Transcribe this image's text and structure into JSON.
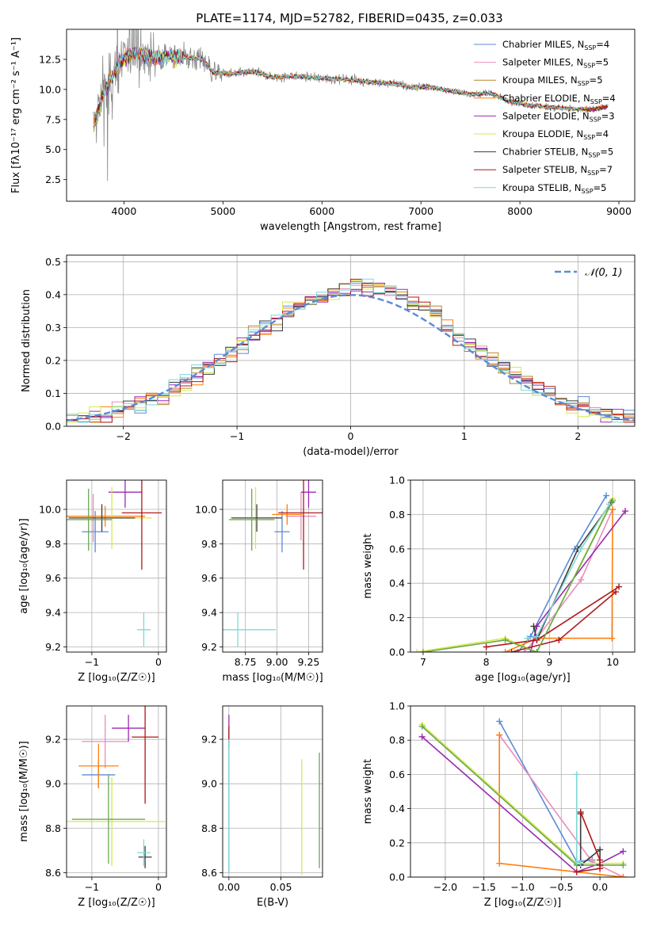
{
  "figure": {
    "title": "PLATE=1174, MJD=52782, FIBERID=0435, z=0.033"
  },
  "chart_data": [
    {
      "id": "spectrum",
      "type": "line",
      "xlabel": "wavelength [Angstrom, rest frame]",
      "ylabel": "Flux [f$_\\lambda$10$^{-17}$ erg cm$^{-2}$ s$^{-1}$ A$^{-1}$]",
      "ylabel_display": "Flux [fλ10⁻¹⁷ erg cm⁻² s⁻¹ A⁻¹]",
      "xlim": [
        3420,
        9160
      ],
      "ylim": [
        0.7,
        15.0
      ],
      "xticks": [
        4000,
        5000,
        6000,
        7000,
        8000,
        9000
      ],
      "yticks": [
        2.5,
        5.0,
        7.5,
        10.0,
        12.5
      ],
      "ytick_labels": [
        "2.5",
        "5.0",
        "7.5",
        "10.0",
        "12.5"
      ],
      "grid": false,
      "legend_position": "upper-right",
      "data_color": "#888888",
      "anchors": {
        "x": [
          3690,
          3800,
          3950,
          4100,
          4300,
          4500,
          4800,
          4900,
          5100,
          5300,
          5500,
          5700,
          5900,
          6100,
          6300,
          6500,
          6700,
          6900,
          7100,
          7300,
          7500,
          7700,
          7900,
          8100,
          8300,
          8500,
          8700,
          8890
        ],
        "y": [
          6.8,
          9.8,
          12.2,
          13.1,
          12.6,
          12.8,
          12.5,
          11.4,
          11.3,
          11.5,
          11.0,
          11.1,
          11.0,
          10.9,
          10.8,
          10.6,
          10.5,
          10.2,
          10.2,
          9.9,
          9.6,
          9.7,
          9.0,
          8.7,
          8.5,
          8.4,
          8.3,
          8.6
        ]
      },
      "series": [
        {
          "name": "Chabrier MILES",
          "nssp": "4",
          "color": "#5b8ad6"
        },
        {
          "name": "Salpeter MILES",
          "nssp": "5",
          "color": "#e98dbb"
        },
        {
          "name": "Kroupa MILES",
          "nssp": "5",
          "color": "#b8862b"
        },
        {
          "name": "Chabrier ELODIE",
          "nssp": "4",
          "color": "#ff7f0e"
        },
        {
          "name": "Salpeter ELODIE",
          "nssp": "3",
          "color": "#9a2bb0"
        },
        {
          "name": "Kroupa ELODIE",
          "nssp": "4",
          "color": "#d8e84a"
        },
        {
          "name": "Chabrier STELIB",
          "nssp": "5",
          "color": "#3c3c3c"
        },
        {
          "name": "Salpeter STELIB",
          "nssp": "7",
          "color": "#b01818"
        },
        {
          "name": "Kroupa STELIB",
          "nssp": "5",
          "color": "#7fd8d8"
        }
      ]
    },
    {
      "id": "residuals",
      "type": "histogram",
      "xlabel": "(data-model)/error",
      "ylabel": "Normed distribution",
      "xlim": [
        -2.5,
        2.5
      ],
      "ylim": [
        0,
        0.52
      ],
      "xticks": [
        -2,
        -1,
        0,
        1,
        2
      ],
      "xtick_labels": [
        "−2",
        "−1",
        "0",
        "1",
        "2"
      ],
      "yticks": [
        0.0,
        0.1,
        0.2,
        0.3,
        0.4,
        0.5
      ],
      "ytick_labels": [
        "0.0",
        "0.1",
        "0.2",
        "0.3",
        "0.4",
        "0.5"
      ],
      "grid": true,
      "bin_width": 0.1,
      "legend": "𝒩(0, 1)",
      "legend_position": "top-right",
      "reference_curve": {
        "name": "N(0,1)",
        "mean": 0,
        "sigma": 1,
        "color": "#5b8ad6",
        "style": "dashed"
      },
      "series_colors": [
        "#5b8ad6",
        "#e98dbb",
        "#b8862b",
        "#ff7f0e",
        "#9a2bb0",
        "#d8e84a",
        "#3c3c3c",
        "#b01818",
        "#7fd8d8"
      ]
    },
    {
      "id": "age-vs-z",
      "type": "errorbar",
      "xlabel": "Z [log₁₀(Z/Z☉)]",
      "ylabel": "age  [log₁₀(age/yr)]",
      "xlim": [
        -1.38,
        0.12
      ],
      "ylim": [
        9.17,
        10.17
      ],
      "xticks": [
        -1,
        0
      ],
      "xtick_labels": [
        "−1",
        "0"
      ],
      "yticks": [
        9.2,
        9.4,
        9.6,
        9.8,
        10.0
      ],
      "ytick_labels": [
        "9.2",
        "9.4",
        "9.6",
        "9.8",
        "10.0"
      ],
      "grid": true,
      "points": [
        {
          "series": "Chabrier MILES",
          "x": -0.95,
          "y": 9.87,
          "xerr": 0.2,
          "yerr": 0.12,
          "color": "#5b8ad6"
        },
        {
          "series": "Salpeter MILES",
          "x": -0.98,
          "y": 9.95,
          "xerr": 0.3,
          "yerr": 0.14,
          "color": "#e98dbb"
        },
        {
          "series": "Chabrier ELODIE",
          "x": -0.8,
          "y": 9.96,
          "xerr": 0.6,
          "yerr": 0.06,
          "color": "#ff7f0e"
        },
        {
          "series": "Salpeter ELODIE",
          "x": -0.5,
          "y": 10.1,
          "xerr": 0.25,
          "yerr": 0.09,
          "color": "#9a2bb0"
        },
        {
          "series": "Kroupa ELODIE",
          "x": -0.7,
          "y": 9.95,
          "xerr": 0.6,
          "yerr": 0.18,
          "color": "#d8e84a"
        },
        {
          "series": "Chabrier STELIB",
          "x": -0.85,
          "y": 9.95,
          "xerr": 0.5,
          "yerr": 0.08,
          "color": "#3c3c3c"
        },
        {
          "series": "Salpeter STELIB",
          "x": -0.25,
          "y": 9.98,
          "xerr": 0.3,
          "yerr": 0.33,
          "color": "#b01818"
        },
        {
          "series": "Kroupa STELIB",
          "x": -0.22,
          "y": 9.3,
          "xerr": 0.1,
          "yerr": 0.1,
          "color": "#7fd8d8"
        },
        {
          "series": "Kroupa MILES",
          "x": -1.05,
          "y": 9.94,
          "xerr": 0.35,
          "yerr": 0.18,
          "color": "#6aa84f"
        }
      ]
    },
    {
      "id": "age-vs-mass",
      "type": "errorbar",
      "xlabel": "mass [log₁₀(M/M☉)]",
      "ylabel": "",
      "xlim": [
        8.57,
        9.36
      ],
      "ylim": [
        9.17,
        10.17
      ],
      "xticks": [
        8.75,
        9.0,
        9.25
      ],
      "xtick_labels": [
        "8.75",
        "9.00",
        "9.25"
      ],
      "yticks": [
        9.2,
        9.4,
        9.6,
        9.8,
        10.0
      ],
      "ytick_labels": [
        "9.2",
        "9.4",
        "9.6",
        "9.8",
        "10.0"
      ],
      "grid": true,
      "points": [
        {
          "series": "Chabrier MILES",
          "x": 9.04,
          "y": 9.87,
          "xerr": 0.06,
          "yerr": 0.12,
          "color": "#5b8ad6"
        },
        {
          "series": "Salpeter MILES",
          "x": 9.19,
          "y": 9.96,
          "xerr": 0.12,
          "yerr": 0.14,
          "color": "#e98dbb"
        },
        {
          "series": "Chabrier ELODIE",
          "x": 9.08,
          "y": 9.97,
          "xerr": 0.12,
          "yerr": 0.06,
          "color": "#ff7f0e"
        },
        {
          "series": "Salpeter ELODIE",
          "x": 9.25,
          "y": 10.1,
          "xerr": 0.06,
          "yerr": 0.09,
          "color": "#9a2bb0"
        },
        {
          "series": "Kroupa ELODIE",
          "x": 8.83,
          "y": 9.95,
          "xerr": 0.2,
          "yerr": 0.18,
          "color": "#d8e84a"
        },
        {
          "series": "Chabrier STELIB",
          "x": 8.84,
          "y": 9.95,
          "xerr": 0.2,
          "yerr": 0.08,
          "color": "#3c3c3c"
        },
        {
          "series": "Salpeter STELIB",
          "x": 9.21,
          "y": 9.98,
          "xerr": 0.2,
          "yerr": 0.33,
          "color": "#b01818"
        },
        {
          "series": "Kroupa STELIB",
          "x": 8.69,
          "y": 9.3,
          "xerr": 0.3,
          "yerr": 0.1,
          "color": "#7fd8d8"
        },
        {
          "series": "Kroupa MILES",
          "x": 8.8,
          "y": 9.94,
          "xerr": 0.18,
          "yerr": 0.18,
          "color": "#6aa84f"
        }
      ]
    },
    {
      "id": "mass-weight-vs-age",
      "type": "line",
      "xlabel": "age  [log₁₀(age/yr)]",
      "ylabel": "mass weight",
      "xlim": [
        6.8,
        10.35
      ],
      "ylim": [
        0,
        1.0
      ],
      "xticks": [
        7,
        8,
        9,
        10
      ],
      "xtick_labels": [
        "7",
        "8",
        "9",
        "10"
      ],
      "yticks": [
        0.0,
        0.2,
        0.4,
        0.6,
        0.8,
        1.0
      ],
      "ytick_labels": [
        "0.0",
        "0.2",
        "0.4",
        "0.6",
        "0.8",
        "1.0"
      ],
      "grid": true,
      "series": [
        {
          "name": "Chabrier MILES",
          "color": "#5b8ad6",
          "x": [
            8.5,
            8.7,
            9.4,
            9.9
          ],
          "y": [
            0.0,
            0.09,
            0.6,
            0.91
          ]
        },
        {
          "name": "Salpeter MILES",
          "color": "#e98dbb",
          "x": [
            8.6,
            8.8,
            9.5,
            10.0
          ],
          "y": [
            0.0,
            0.08,
            0.42,
            0.83
          ]
        },
        {
          "name": "Chabrier ELODIE",
          "color": "#ff7f0e",
          "x": [
            8.3,
            8.8,
            9.99,
            10.0
          ],
          "y": [
            0.0,
            0.08,
            0.08,
            0.83
          ]
        },
        {
          "name": "Salpeter ELODIE",
          "color": "#9a2bb0",
          "x": [
            8.7,
            8.8,
            10.2
          ],
          "y": [
            0.0,
            0.15,
            0.82
          ]
        },
        {
          "name": "Kroupa ELODIE",
          "color": "#d8e84a",
          "x": [
            6.9,
            8.3,
            8.8,
            10.0
          ],
          "y": [
            0.0,
            0.08,
            0.0,
            0.89
          ]
        },
        {
          "name": "Chabrier STELIB",
          "color": "#3c3c3c",
          "x": [
            8.75,
            8.8,
            9.45,
            9.98
          ],
          "y": [
            0.15,
            0.07,
            0.6,
            0.87
          ]
        },
        {
          "name": "Salpeter STELIB",
          "color": "#b01818",
          "x": [
            8.0,
            8.8,
            10.1
          ],
          "y": [
            0.03,
            0.07,
            0.38
          ]
        },
        {
          "name": "Salpeter STELIB (2)",
          "color": "#b01818",
          "x": [
            8.4,
            9.15,
            10.05
          ],
          "y": [
            0.0,
            0.07,
            0.35
          ]
        },
        {
          "name": "Kroupa STELIB",
          "color": "#7fd8d8",
          "x": [
            8.65,
            8.8,
            9.5,
            9.95
          ],
          "y": [
            0.08,
            0.09,
            0.6,
            0.86
          ]
        },
        {
          "name": "Kroupa MILES",
          "color": "#6aa84f",
          "x": [
            7.0,
            8.3,
            8.8,
            10.0
          ],
          "y": [
            0.0,
            0.07,
            0.0,
            0.88
          ]
        }
      ]
    },
    {
      "id": "mass-vs-z",
      "type": "errorbar",
      "xlabel": "Z [log₁₀(Z/Z☉)]",
      "ylabel": "mass [log₁₀(M/M☉)]",
      "xlim": [
        -1.38,
        0.12
      ],
      "ylim": [
        8.58,
        9.35
      ],
      "xticks": [
        -1,
        0
      ],
      "xtick_labels": [
        "−1",
        "0"
      ],
      "yticks": [
        8.6,
        8.8,
        9.0,
        9.2
      ],
      "ytick_labels": [
        "8.6",
        "8.8",
        "9.0",
        "9.2"
      ],
      "grid": true,
      "points": [
        {
          "series": "Chabrier MILES",
          "x": -0.9,
          "y": 9.04,
          "xerr": 0.25,
          "yerr": 0.06,
          "color": "#5b8ad6"
        },
        {
          "series": "Salpeter MILES",
          "x": -0.8,
          "y": 9.19,
          "xerr": 0.35,
          "yerr": 0.12,
          "color": "#e98dbb"
        },
        {
          "series": "Chabrier ELODIE",
          "x": -0.9,
          "y": 9.08,
          "xerr": 0.3,
          "yerr": 0.1,
          "color": "#ff7f0e"
        },
        {
          "series": "Salpeter ELODIE",
          "x": -0.45,
          "y": 9.25,
          "xerr": 0.25,
          "yerr": 0.06,
          "color": "#9a2bb0"
        },
        {
          "series": "Kroupa ELODIE",
          "x": -0.7,
          "y": 8.83,
          "xerr": 0.8,
          "yerr": 0.2,
          "color": "#d8e84a"
        },
        {
          "series": "Kroupa MILES",
          "x": -0.75,
          "y": 8.84,
          "xerr": 0.55,
          "yerr": 0.2,
          "color": "#6aa84f"
        },
        {
          "series": "Chabrier STELIB",
          "x": -0.2,
          "y": 8.67,
          "xerr": 0.1,
          "yerr": 0.05,
          "color": "#3c3c3c"
        },
        {
          "series": "Salpeter STELIB",
          "x": -0.2,
          "y": 9.21,
          "xerr": 0.2,
          "yerr": 0.3,
          "color": "#b01818"
        },
        {
          "series": "Kroupa STELIB",
          "x": -0.22,
          "y": 8.69,
          "xerr": 0.1,
          "yerr": 0.06,
          "color": "#7fd8d8"
        }
      ]
    },
    {
      "id": "mass-vs-ebv",
      "type": "errorbar",
      "xlabel": "E(B-V)",
      "ylabel": "",
      "xlim": [
        -0.006,
        0.09
      ],
      "ylim": [
        8.58,
        9.35
      ],
      "xticks": [
        0.0,
        0.05
      ],
      "xtick_labels": [
        "0.00",
        "0.05"
      ],
      "yticks": [
        8.6,
        8.8,
        9.0,
        9.2
      ],
      "ytick_labels": [
        "8.6",
        "8.8",
        "9.0",
        "9.2"
      ],
      "grid": true,
      "points": [
        {
          "series": "Salpeter ELODIE",
          "x": 0.0,
          "y": 9.25,
          "xerr": 0.0,
          "yerr": 0.06,
          "color": "#9a2bb0"
        },
        {
          "series": "Salpeter STELIB",
          "x": 0.0,
          "y": 9.21,
          "xerr": 0.0,
          "yerr": 0.05,
          "color": "#b01818"
        },
        {
          "series": "Chabrier MILES",
          "x": 0.0,
          "y": 8.9,
          "xerr": 0.0,
          "yerr": 0.3,
          "color": "#5b8ad6"
        },
        {
          "series": "Kroupa STELIB",
          "x": 0.0,
          "y": 8.9,
          "xerr": 0.0,
          "yerr": 0.3,
          "color": "#7fd8d8"
        },
        {
          "series": "Kroupa ELODIE",
          "x": 0.07,
          "y": 8.85,
          "xerr": 0.0,
          "yerr": 0.26,
          "color": "#d8e84a"
        },
        {
          "series": "Kroupa MILES",
          "x": 0.087,
          "y": 8.88,
          "xerr": 0.0,
          "yerr": 0.26,
          "color": "#6aa84f"
        }
      ]
    },
    {
      "id": "mass-weight-vs-z",
      "type": "line",
      "xlabel": "Z [log₁₀(Z/Z☉)]",
      "ylabel": "mass weight",
      "xlim": [
        -2.45,
        0.45
      ],
      "ylim": [
        0,
        1.0
      ],
      "xticks": [
        -2.0,
        -1.5,
        -1.0,
        -0.5,
        0.0
      ],
      "xtick_labels": [
        "−2.0",
        "−1.5",
        "−1.0",
        "−0.5",
        "0.0"
      ],
      "yticks": [
        0.0,
        0.2,
        0.4,
        0.6,
        0.8,
        1.0
      ],
      "ytick_labels": [
        "0.0",
        "0.2",
        "0.4",
        "0.6",
        "0.8",
        "1.0"
      ],
      "grid": true,
      "series": [
        {
          "name": "Chabrier MILES",
          "color": "#5b8ad6",
          "x": [
            -1.3,
            -0.3,
            -0.1
          ],
          "y": [
            0.91,
            0.09,
            0.1
          ]
        },
        {
          "name": "Salpeter MILES",
          "color": "#e98dbb",
          "x": [
            -1.3,
            -0.1,
            0.3
          ],
          "y": [
            0.83,
            0.09,
            0.0
          ]
        },
        {
          "name": "Chabrier ELODIE",
          "color": "#ff7f0e",
          "x": [
            -1.3,
            -1.3,
            0.3
          ],
          "y": [
            0.83,
            0.08,
            0.0
          ]
        },
        {
          "name": "Salpeter ELODIE",
          "color": "#9a2bb0",
          "x": [
            -2.3,
            -0.3,
            0.0,
            0.3
          ],
          "y": [
            0.82,
            0.03,
            0.08,
            0.15
          ]
        },
        {
          "name": "Kroupa ELODIE",
          "color": "#d8e84a",
          "x": [
            -2.3,
            -0.3,
            0.3
          ],
          "y": [
            0.89,
            0.08,
            0.08
          ]
        },
        {
          "name": "Kroupa MILES",
          "color": "#6aa84f",
          "x": [
            -2.3,
            -0.3,
            0.3
          ],
          "y": [
            0.88,
            0.07,
            0.07
          ]
        },
        {
          "name": "Chabrier STELIB",
          "color": "#3c3c3c",
          "x": [
            -0.25,
            -0.25,
            0.0,
            0.0
          ],
          "y": [
            0.37,
            0.07,
            0.16,
            0.07
          ]
        },
        {
          "name": "Salpeter STELIB",
          "color": "#b01818",
          "x": [
            -0.25,
            0.0,
            0.0,
            -0.3
          ],
          "y": [
            0.38,
            0.1,
            0.05,
            0.03
          ]
        },
        {
          "name": "Kroupa STELIB",
          "color": "#7fd8d8",
          "x": [
            -0.3,
            -0.3,
            -0.25
          ],
          "y": [
            0.6,
            0.09,
            0.08
          ]
        }
      ]
    }
  ]
}
